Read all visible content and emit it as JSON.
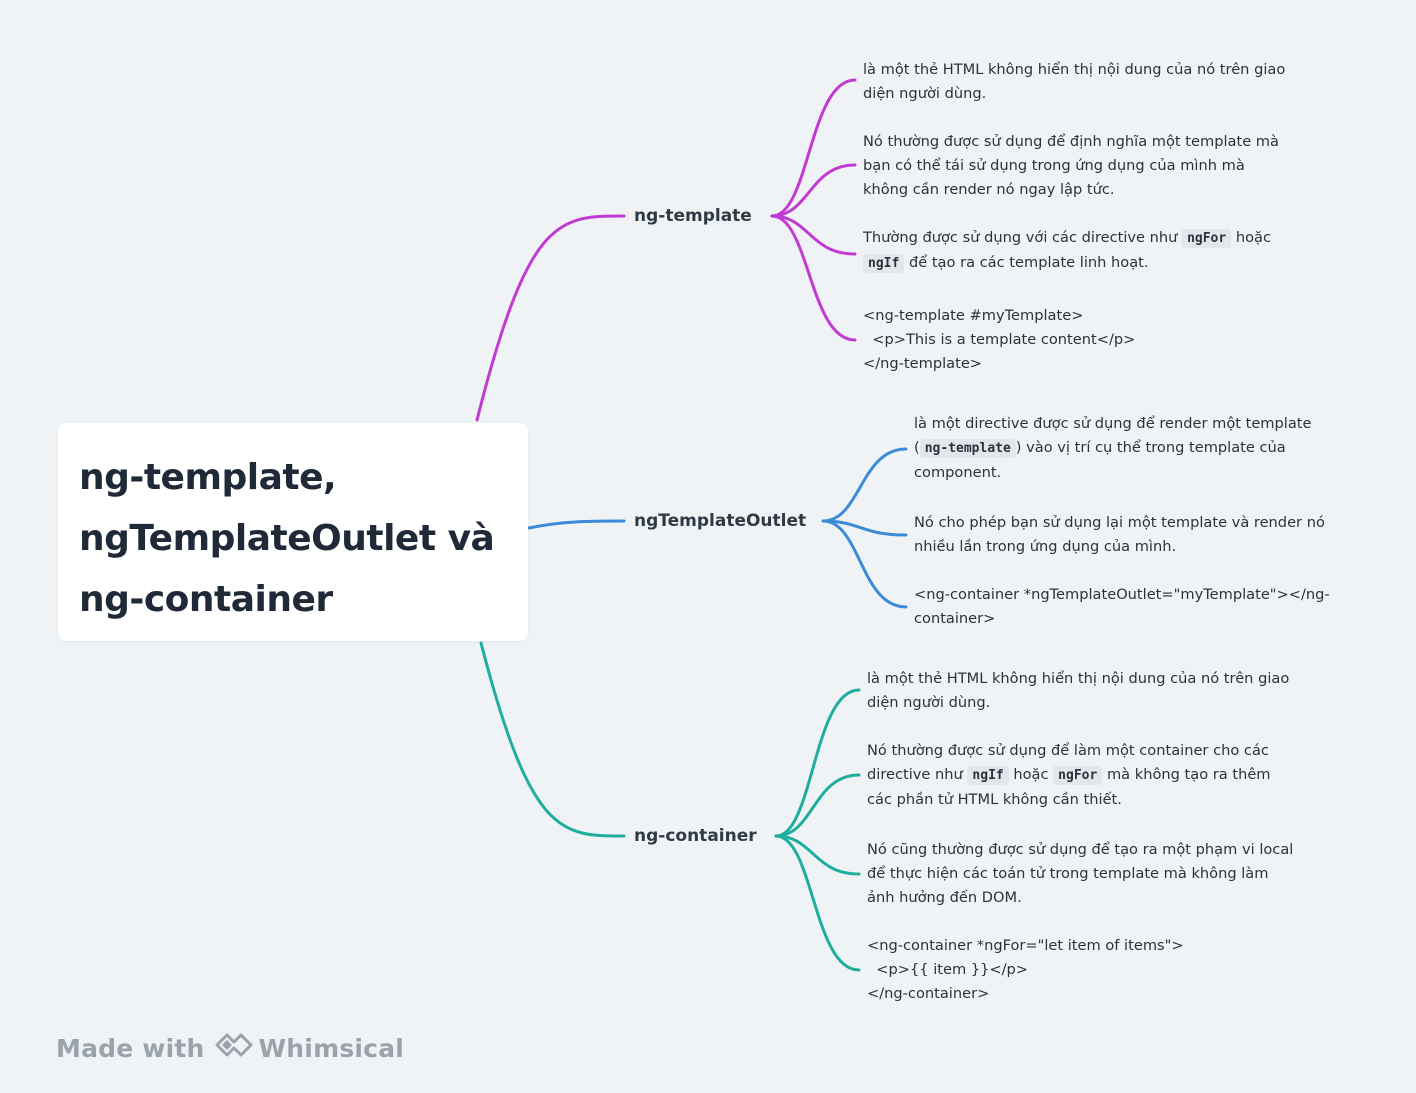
{
  "colors": {
    "ng_template": "#c13bd2",
    "ng_template_outlet": "#3b8bd8",
    "ng_container": "#1fae9e"
  },
  "root": {
    "title_lines": [
      "ng-template,",
      "ngTemplateOutlet và",
      "ng-container"
    ]
  },
  "branches": {
    "ng_template": {
      "label": "ng-template",
      "leaves": [
        {
          "lines": [
            [
              "là một thẻ HTML không hiển thị nội dung của nó trên giao"
            ],
            [
              "diện người dùng."
            ]
          ]
        },
        {
          "lines": [
            [
              "Nó thường được sử dụng để định nghĩa một template mà"
            ],
            [
              "bạn có thể tái sử dụng trong ứng dụng của mình mà"
            ],
            [
              "không cần render nó ngay lập tức."
            ]
          ]
        },
        {
          "lines": [
            [
              "Thường được sử dụng với các directive như ",
              {
                "code": "ngFor"
              },
              " hoặc"
            ],
            [
              {
                "code": "ngIf"
              },
              " để tạo ra các template linh hoạt."
            ]
          ]
        },
        {
          "lines": [
            [
              "<ng-template #myTemplate>"
            ],
            [
              "  <p>This is a template content</p>"
            ],
            [
              "</ng-template>"
            ]
          ]
        }
      ]
    },
    "ng_template_outlet": {
      "label": "ngTemplateOutlet",
      "leaves": [
        {
          "lines": [
            [
              "là một directive được sử dụng để render một template"
            ],
            [
              "(",
              {
                "code": "ng-template"
              },
              ") vào vị trí cụ thể trong template của"
            ],
            [
              "component."
            ]
          ]
        },
        {
          "lines": [
            [
              "Nó cho phép bạn sử dụng lại một template và render nó"
            ],
            [
              "nhiều lần trong ứng dụng của mình."
            ]
          ]
        },
        {
          "lines": [
            [
              "<ng-container *ngTemplateOutlet=\"myTemplate\"></ng-"
            ],
            [
              "container>"
            ]
          ]
        }
      ]
    },
    "ng_container": {
      "label": "ng-container",
      "leaves": [
        {
          "lines": [
            [
              "là một thẻ HTML không hiển thị nội dung của nó trên giao"
            ],
            [
              "diện người dùng."
            ]
          ]
        },
        {
          "lines": [
            [
              "Nó thường được sử dụng để làm một container cho các"
            ],
            [
              "directive như ",
              {
                "code": "ngIf"
              },
              " hoặc ",
              {
                "code": "ngFor"
              },
              " mà không tạo ra thêm"
            ],
            [
              "các phần tử HTML không cần thiết."
            ]
          ]
        },
        {
          "lines": [
            [
              "Nó cũng thường được sử dụng để tạo ra một phạm vi local"
            ],
            [
              "để thực hiện các toán tử trong template mà không làm"
            ],
            [
              "ảnh hưởng đến DOM."
            ]
          ]
        },
        {
          "lines": [
            [
              "<ng-container *ngFor=\"let item of items\">"
            ],
            [
              "  <p>{{ item }}</p>"
            ],
            [
              "</ng-container>"
            ]
          ]
        }
      ]
    }
  },
  "watermark": {
    "prefix": "Made with",
    "brand": "Whimsical",
    "icon": "whimsical-logo-icon"
  }
}
